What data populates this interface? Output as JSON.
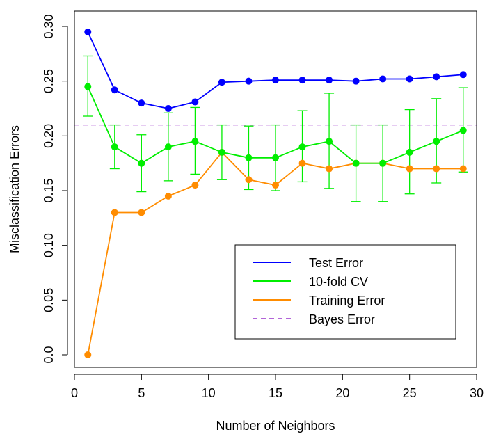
{
  "chart_data": {
    "type": "line",
    "xlabel": "Number of Neighbors",
    "ylabel": "Misclassification Errors",
    "xlim": [
      0,
      30
    ],
    "ylim": [
      -0.01,
      0.32
    ],
    "xticks": [
      0,
      5,
      10,
      15,
      20,
      25,
      30
    ],
    "xtick_labels": [
      "0",
      "5",
      "10",
      "15",
      "20",
      "25",
      "30"
    ],
    "yticks": [
      0.0,
      0.05,
      0.1,
      0.15,
      0.2,
      0.25,
      0.3
    ],
    "ytick_labels": [
      "0.0",
      "0.05",
      "0.10",
      "0.15",
      "0.20",
      "0.25",
      "0.30"
    ],
    "x": [
      1,
      3,
      5,
      7,
      9,
      11,
      13,
      15,
      17,
      19,
      21,
      23,
      25,
      27,
      29
    ],
    "series": [
      {
        "name": "Test Error",
        "color": "#0000ff",
        "values": [
          0.295,
          0.242,
          0.23,
          0.225,
          0.231,
          0.249,
          0.25,
          0.251,
          0.251,
          0.251,
          0.25,
          0.252,
          0.252,
          0.254,
          0.256
        ]
      },
      {
        "name": "10-fold CV",
        "color": "#00ee00",
        "values": [
          0.245,
          0.19,
          0.175,
          0.19,
          0.195,
          0.185,
          0.18,
          0.18,
          0.19,
          0.195,
          0.175,
          0.175,
          0.185,
          0.195,
          0.205
        ],
        "error_low": [
          0.218,
          0.17,
          0.149,
          0.159,
          0.165,
          0.16,
          0.151,
          0.15,
          0.158,
          0.152,
          0.14,
          0.14,
          0.147,
          0.157,
          0.167
        ],
        "error_high": [
          0.273,
          0.21,
          0.201,
          0.221,
          0.226,
          0.21,
          0.209,
          0.21,
          0.223,
          0.239,
          0.21,
          0.21,
          0.224,
          0.234,
          0.244
        ]
      },
      {
        "name": "Training Error",
        "color": "#ff8c00",
        "values": [
          0.0,
          0.13,
          0.13,
          0.145,
          0.155,
          0.185,
          0.16,
          0.155,
          0.175,
          0.17,
          0.175,
          0.175,
          0.17,
          0.17,
          0.17
        ]
      }
    ],
    "reference_lines": [
      {
        "name": "Bayes Error",
        "y": 0.21,
        "color": "#9932cc",
        "style": "dashed"
      }
    ],
    "legend": {
      "position": "bottom-right",
      "entries": [
        "Test Error",
        "10-fold CV",
        "Training Error",
        "Bayes Error"
      ]
    },
    "grid": false
  }
}
